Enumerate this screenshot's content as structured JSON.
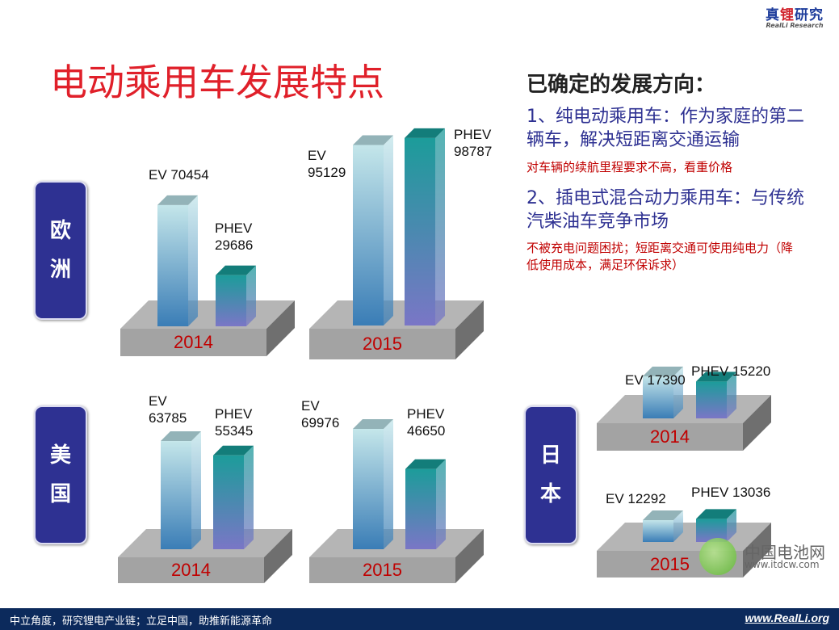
{
  "logo": {
    "cn_part1": "真",
    "cn_part2": "锂",
    "cn_part3": "研究",
    "en": "RealLi Research"
  },
  "title": "电动乘用车发展特点",
  "right_panel": {
    "heading": "已确定的发展方向：",
    "point1": "1、纯电动乘用车：作为家庭的第二辆车，解决短距离交通运输",
    "point1_note": "对车辆的续航里程要求不高，看重价格",
    "point2": "2、插电式混合动力乘用车：与传统汽柴油车竞争市场",
    "point2_note": "不被充电问题困扰；短距离交通可使用纯电力（降低使用成本，满足环保诉求）"
  },
  "regions": {
    "europe": [
      "欧",
      "洲"
    ],
    "usa": [
      "美",
      "国"
    ],
    "japan": [
      "日",
      "本"
    ]
  },
  "colors": {
    "ev_top": "#c4e6ea",
    "ev_bottom": "#3a7db6",
    "phev_top": "#1c9c9a",
    "phev_bottom": "#7a76c6",
    "platform": "#a3a3a3",
    "year": "#c00000",
    "region_box": "#2e3192",
    "title": "#e0202a"
  },
  "chart_data": [
    {
      "type": "bar",
      "region": "欧洲",
      "title": "2014",
      "categories": [
        "EV",
        "PHEV"
      ],
      "values": [
        70454,
        29686
      ],
      "labels": [
        "EV 70454",
        "PHEV\n29686"
      ]
    },
    {
      "type": "bar",
      "region": "欧洲",
      "title": "2015",
      "categories": [
        "EV",
        "PHEV"
      ],
      "values": [
        95129,
        98787
      ],
      "labels": [
        "EV\n95129",
        "PHEV\n98787"
      ]
    },
    {
      "type": "bar",
      "region": "美国",
      "title": "2014",
      "categories": [
        "EV",
        "PHEV"
      ],
      "values": [
        63785,
        55345
      ],
      "labels": [
        "EV\n63785",
        "PHEV\n55345"
      ]
    },
    {
      "type": "bar",
      "region": "美国",
      "title": "2015",
      "categories": [
        "EV",
        "PHEV"
      ],
      "values": [
        69976,
        46650
      ],
      "labels": [
        "EV\n69976",
        "PHEV\n46650"
      ]
    },
    {
      "type": "bar",
      "region": "日本",
      "title": "2014",
      "categories": [
        "EV",
        "PHEV"
      ],
      "values": [
        17390,
        15220
      ],
      "labels": [
        "EV 17390",
        "PHEV 15220"
      ]
    },
    {
      "type": "bar",
      "region": "日本",
      "title": "2015",
      "categories": [
        "EV",
        "PHEV"
      ],
      "values": [
        12292,
        13036
      ],
      "labels": [
        "EV 12292",
        "PHEV 13036"
      ]
    }
  ],
  "watermark": {
    "text": "中国电池网",
    "url": "www.itdcw.com"
  },
  "footer": {
    "left": "中立角度，研究锂电产业链；立足中国，助推新能源革命",
    "right": "www.RealLi.org"
  }
}
